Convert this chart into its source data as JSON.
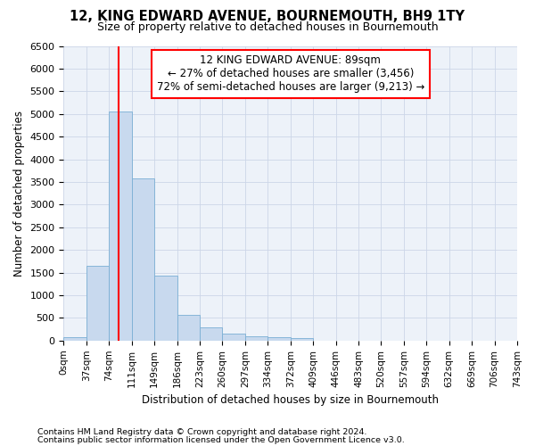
{
  "title": "12, KING EDWARD AVENUE, BOURNEMOUTH, BH9 1TY",
  "subtitle": "Size of property relative to detached houses in Bournemouth",
  "xlabel": "Distribution of detached houses by size in Bournemouth",
  "ylabel": "Number of detached properties",
  "footnote1": "Contains HM Land Registry data © Crown copyright and database right 2024.",
  "footnote2": "Contains public sector information licensed under the Open Government Licence v3.0.",
  "annotation_line1": "12 KING EDWARD AVENUE: 89sqm",
  "annotation_line2": "← 27% of detached houses are smaller (3,456)",
  "annotation_line3": "72% of semi-detached houses are larger (9,213) →",
  "bar_color": "#c8d9ee",
  "bar_edge_color": "#7aafd4",
  "grid_color": "#ccd6e8",
  "bin_labels": [
    "0sqm",
    "37sqm",
    "74sqm",
    "111sqm",
    "149sqm",
    "186sqm",
    "223sqm",
    "260sqm",
    "297sqm",
    "334sqm",
    "372sqm",
    "409sqm",
    "446sqm",
    "483sqm",
    "520sqm",
    "557sqm",
    "594sqm",
    "632sqm",
    "669sqm",
    "706sqm",
    "743sqm"
  ],
  "bar_heights": [
    75,
    1650,
    5050,
    3575,
    1425,
    575,
    300,
    150,
    100,
    75,
    50,
    0,
    0,
    0,
    0,
    0,
    0,
    0,
    0,
    0
  ],
  "red_line_x": 2.405,
  "ylim": [
    0,
    6500
  ],
  "yticks": [
    0,
    500,
    1000,
    1500,
    2000,
    2500,
    3000,
    3500,
    4000,
    4500,
    5000,
    5500,
    6000,
    6500
  ],
  "background_color": "#ffffff",
  "plot_bg_color": "#edf2f9"
}
